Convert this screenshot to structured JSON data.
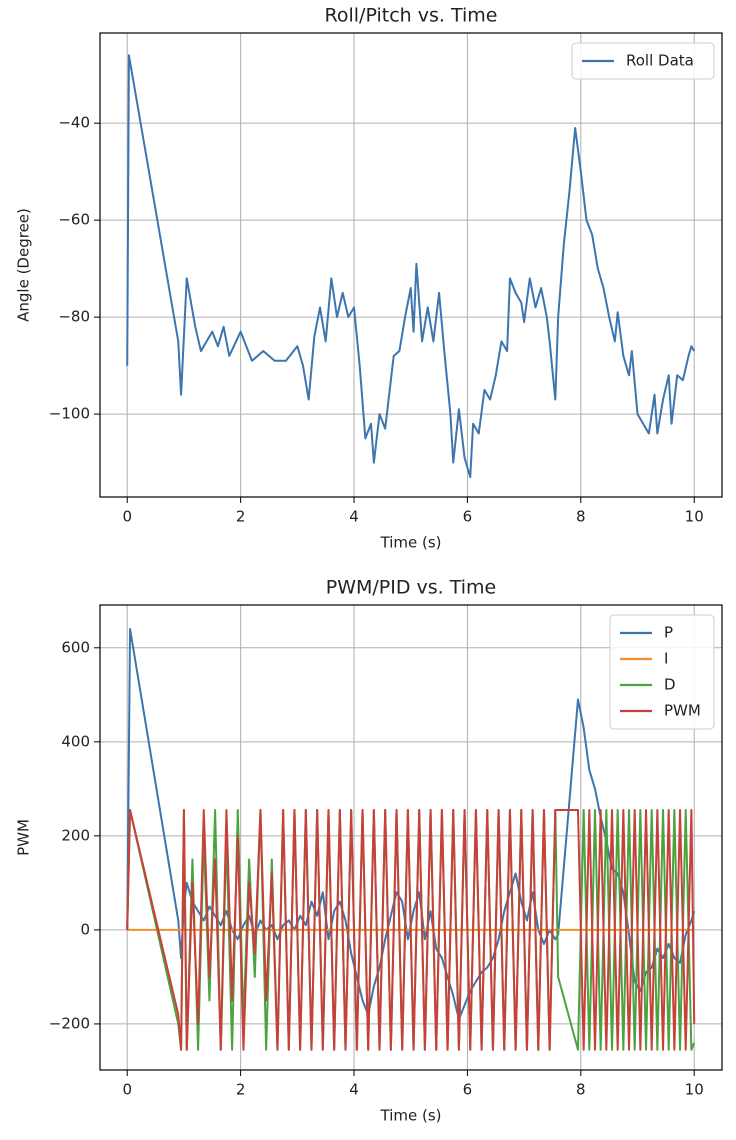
{
  "chart_data": [
    {
      "type": "line",
      "title": "Roll/Pitch vs. Time",
      "xlabel": "Time (s)",
      "ylabel": "Angle (Degree)",
      "x": [
        0,
        0.03,
        0.9,
        0.95,
        1.05,
        1.2,
        1.3,
        1.5,
        1.6,
        1.7,
        1.8,
        2.0,
        2.2,
        2.4,
        2.6,
        2.8,
        3.0,
        3.1,
        3.2,
        3.3,
        3.4,
        3.5,
        3.6,
        3.7,
        3.8,
        3.9,
        4.0,
        4.1,
        4.2,
        4.3,
        4.35,
        4.45,
        4.55,
        4.7,
        4.8,
        4.9,
        5.0,
        5.05,
        5.1,
        5.2,
        5.3,
        5.4,
        5.5,
        5.6,
        5.7,
        5.75,
        5.85,
        5.95,
        6.05,
        6.1,
        6.2,
        6.3,
        6.4,
        6.5,
        6.6,
        6.7,
        6.75,
        6.85,
        6.95,
        7.0,
        7.1,
        7.2,
        7.3,
        7.4,
        7.45,
        7.55,
        7.6,
        7.7,
        7.8,
        7.9,
        8.0,
        8.1,
        8.2,
        8.3,
        8.4,
        8.5,
        8.6,
        8.65,
        8.75,
        8.85,
        8.9,
        9.0,
        9.1,
        9.2,
        9.3,
        9.35,
        9.45,
        9.55,
        9.6,
        9.7,
        9.8,
        9.9,
        9.95,
        10.0
      ],
      "series": [
        {
          "name": "Roll Data",
          "color": "#3d75b0",
          "values": [
            -90,
            -26,
            -85,
            -96,
            -72,
            -82,
            -87,
            -83,
            -86,
            -82,
            -88,
            -83,
            -89,
            -87,
            -89,
            -89,
            -86,
            -90,
            -97,
            -84,
            -78,
            -85,
            -72,
            -80,
            -75,
            -80,
            -78,
            -90,
            -105,
            -102,
            -110,
            -100,
            -103,
            -88,
            -87,
            -80,
            -74,
            -83,
            -69,
            -85,
            -78,
            -85,
            -75,
            -88,
            -100,
            -110,
            -99,
            -109,
            -113,
            -102,
            -104,
            -95,
            -97,
            -92,
            -85,
            -87,
            -72,
            -75,
            -77,
            -81,
            -72,
            -78,
            -74,
            -80,
            -85,
            -97,
            -80,
            -65,
            -54,
            -41,
            -50,
            -60,
            -63,
            -70,
            -74,
            -80,
            -85,
            -79,
            -88,
            -92,
            -87,
            -100,
            -102,
            -104,
            -96,
            -104,
            -97,
            -92,
            -102,
            -92,
            -93,
            -88,
            -86,
            -87
          ]
        }
      ],
      "xlim": [
        -0.48,
        10.49
      ],
      "ylim": [
        -117.1,
        -21.4
      ],
      "xticks": [
        0,
        2,
        4,
        6,
        8,
        10
      ],
      "yticks": [
        {
          "value": -100,
          "label": "−100"
        },
        {
          "value": -80,
          "label": "−80"
        },
        {
          "value": -60,
          "label": "−60"
        },
        {
          "value": -40,
          "label": "−40"
        }
      ],
      "grid": true,
      "legend": "upper right"
    },
    {
      "type": "line",
      "title": "PWM/PID vs. Time",
      "xlabel": "Time (s)",
      "ylabel": "PWM",
      "x": [
        0,
        0.05,
        0.9,
        0.95,
        1.0,
        1.05,
        1.15,
        1.25,
        1.35,
        1.45,
        1.55,
        1.65,
        1.75,
        1.85,
        1.95,
        2.05,
        2.15,
        2.25,
        2.35,
        2.45,
        2.55,
        2.65,
        2.75,
        2.85,
        2.95,
        3.05,
        3.15,
        3.25,
        3.35,
        3.45,
        3.55,
        3.65,
        3.75,
        3.85,
        3.95,
        4.05,
        4.15,
        4.25,
        4.35,
        4.45,
        4.55,
        4.65,
        4.75,
        4.85,
        4.95,
        5.05,
        5.15,
        5.25,
        5.35,
        5.45,
        5.55,
        5.65,
        5.75,
        5.85,
        5.95,
        6.05,
        6.15,
        6.25,
        6.35,
        6.45,
        6.55,
        6.65,
        6.75,
        6.85,
        6.95,
        7.05,
        7.15,
        7.25,
        7.35,
        7.45,
        7.55,
        7.6,
        7.95,
        8.05,
        8.15,
        8.25,
        8.35,
        8.45,
        8.55,
        8.65,
        8.75,
        8.85,
        8.95,
        9.05,
        9.15,
        9.25,
        9.35,
        9.45,
        9.55,
        9.65,
        9.75,
        9.85,
        9.95,
        10.0
      ],
      "series": [
        {
          "name": "P",
          "color": "#3d75b0",
          "values": [
            0,
            640,
            20,
            -60,
            50,
            100,
            60,
            40,
            20,
            50,
            30,
            10,
            40,
            0,
            -20,
            10,
            30,
            -10,
            20,
            0,
            10,
            -20,
            10,
            20,
            0,
            30,
            10,
            60,
            30,
            80,
            -20,
            40,
            60,
            20,
            -50,
            -100,
            -150,
            -180,
            -120,
            -80,
            -20,
            30,
            80,
            60,
            -20,
            40,
            80,
            -20,
            40,
            -40,
            -60,
            -100,
            -140,
            -190,
            -160,
            -130,
            -110,
            -90,
            -80,
            -60,
            -20,
            40,
            80,
            120,
            60,
            20,
            80,
            0,
            -30,
            0,
            -20,
            -10,
            490,
            430,
            340,
            300,
            240,
            190,
            130,
            120,
            80,
            -10,
            -110,
            -130,
            -90,
            -80,
            -40,
            -60,
            -30,
            -60,
            -70,
            -10,
            20,
            40
          ]
        },
        {
          "name": "I",
          "color": "#f28e2b",
          "values": [
            0,
            0,
            0,
            0,
            0,
            0,
            0,
            0,
            0,
            0,
            0,
            0,
            0,
            0,
            0,
            0,
            0,
            0,
            0,
            0,
            0,
            0,
            0,
            0,
            0,
            0,
            0,
            0,
            0,
            0,
            0,
            0,
            0,
            0,
            0,
            0,
            0,
            0,
            0,
            0,
            0,
            0,
            0,
            0,
            0,
            0,
            0,
            0,
            0,
            0,
            0,
            0,
            0,
            0,
            0,
            0,
            0,
            0,
            0,
            0,
            0,
            0,
            0,
            0,
            0,
            0,
            0,
            0,
            0,
            0,
            0,
            0,
            0,
            0,
            0,
            0,
            0,
            0,
            0,
            0,
            0,
            0,
            0,
            0,
            0,
            0,
            0,
            0,
            0,
            0,
            0,
            0,
            0,
            0
          ]
        },
        {
          "name": "D",
          "color": "#4aa33f",
          "values": [
            0,
            255,
            -200,
            -255,
            255,
            -255,
            150,
            -255,
            200,
            -150,
            255,
            -255,
            200,
            -255,
            255,
            -200,
            150,
            -100,
            255,
            -255,
            150,
            -255,
            255,
            -255,
            255,
            -255,
            255,
            -255,
            255,
            -255,
            255,
            -255,
            255,
            -255,
            255,
            -255,
            255,
            -255,
            255,
            -255,
            255,
            -255,
            255,
            -255,
            255,
            -255,
            255,
            -255,
            255,
            -255,
            255,
            -255,
            255,
            -255,
            255,
            -255,
            255,
            -255,
            255,
            -255,
            255,
            -255,
            255,
            -255,
            255,
            -255,
            255,
            -255,
            255,
            -255,
            255,
            -100,
            -255,
            255,
            -255,
            255,
            -255,
            255,
            -255,
            255,
            -255,
            255,
            -255,
            255,
            -255,
            255,
            -255,
            255,
            -255,
            255,
            -255,
            255,
            -255,
            -240
          ]
        },
        {
          "name": "PWM",
          "color": "#c8403a",
          "values": [
            0,
            255,
            -180,
            -255,
            255,
            -255,
            100,
            -200,
            255,
            -100,
            150,
            -255,
            255,
            -150,
            200,
            -255,
            100,
            -50,
            255,
            -150,
            120,
            -255,
            255,
            -255,
            255,
            -255,
            255,
            -255,
            255,
            -255,
            255,
            -255,
            255,
            -255,
            255,
            -255,
            255,
            -255,
            255,
            -255,
            255,
            -255,
            255,
            -255,
            255,
            -255,
            255,
            -255,
            255,
            -255,
            255,
            -255,
            255,
            -255,
            255,
            -255,
            255,
            -255,
            255,
            -255,
            255,
            -255,
            255,
            -255,
            255,
            -255,
            255,
            -255,
            255,
            -255,
            255,
            255,
            255,
            -255,
            255,
            -255,
            255,
            -255,
            255,
            -255,
            255,
            -255,
            255,
            -255,
            255,
            -255,
            255,
            -255,
            255,
            -255,
            255,
            -255,
            255,
            -200
          ]
        }
      ],
      "xlim": [
        -0.48,
        10.49
      ],
      "ylim": [
        -298,
        691
      ],
      "xticks": [
        0,
        2,
        4,
        6,
        8,
        10
      ],
      "yticks": [
        {
          "value": -200,
          "label": "−200"
        },
        0,
        200,
        400,
        600
      ],
      "grid": true,
      "legend": "upper right"
    }
  ]
}
